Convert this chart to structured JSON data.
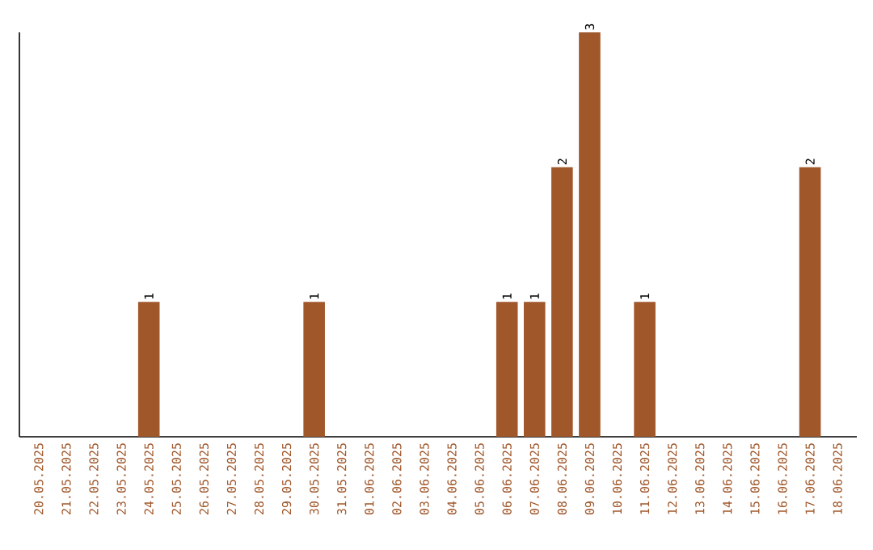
{
  "chart_data": {
    "type": "bar",
    "categories": [
      "20.05.2025",
      "21.05.2025",
      "22.05.2025",
      "23.05.2025",
      "24.05.2025",
      "25.05.2025",
      "26.05.2025",
      "27.05.2025",
      "28.05.2025",
      "29.05.2025",
      "30.05.2025",
      "31.05.2025",
      "01.06.2025",
      "02.06.2025",
      "03.06.2025",
      "04.06.2025",
      "05.06.2025",
      "06.06.2025",
      "07.06.2025",
      "08.06.2025",
      "09.06.2025",
      "10.06.2025",
      "11.06.2025",
      "12.06.2025",
      "13.06.2025",
      "14.06.2025",
      "15.06.2025",
      "16.06.2025",
      "17.06.2025",
      "18.06.2025"
    ],
    "values": [
      0,
      0,
      0,
      0,
      1,
      0,
      0,
      0,
      0,
      0,
      1,
      0,
      0,
      0,
      0,
      0,
      0,
      1,
      1,
      2,
      3,
      0,
      1,
      0,
      0,
      0,
      0,
      0,
      2,
      0
    ],
    "value_labels": [
      null,
      null,
      null,
      null,
      "1",
      null,
      null,
      null,
      null,
      null,
      "1",
      null,
      null,
      null,
      null,
      null,
      null,
      "1",
      "1",
      "2",
      "3",
      null,
      "1",
      null,
      null,
      null,
      null,
      null,
      "2",
      null
    ],
    "color": "#a0572a",
    "ylim": [
      0,
      3
    ],
    "tick_labels": "x"
  }
}
